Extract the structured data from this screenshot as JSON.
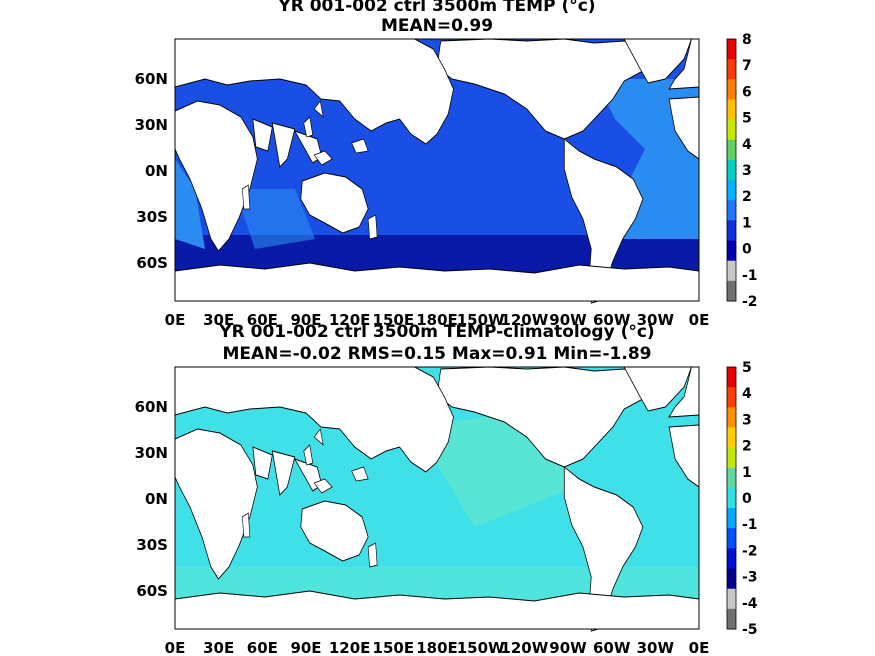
{
  "panels": [
    {
      "title_line1": "YR 001-002 ctrl 3500m TEMP (°c)",
      "title_line2": "MEAN=0.99",
      "colorbar": {
        "ticks": [
          "8",
          "7",
          "6",
          "5",
          "4",
          "3",
          "2",
          "1",
          "0",
          "-1",
          "-2"
        ],
        "colors": [
          "#e60000",
          "#ff3a00",
          "#ff8000",
          "#ffc000",
          "#c8e600",
          "#60d060",
          "#00d0c0",
          "#00b4ff",
          "#1e78ff",
          "#1030e0",
          "#0000b0",
          "#c8c8c8",
          "#707070"
        ]
      },
      "ocean_color": "#1a4fe6",
      "deep_color": "#0a1aa8",
      "atlantic_color": "#2a8cf0"
    },
    {
      "title_line1": "YR 001-002 ctrl 3500m TEMP-climatology (°c)",
      "title_line2": "MEAN=-0.02   RMS=0.15   Max=0.91   Min=-1.89",
      "colorbar": {
        "ticks": [
          "5",
          "4",
          "3",
          "2",
          "1",
          "0",
          "-1",
          "-2",
          "-3",
          "-4",
          "-5"
        ],
        "colors": [
          "#e60000",
          "#ff4000",
          "#ff9000",
          "#ffd000",
          "#c0e800",
          "#60d8a0",
          "#30e0e0",
          "#00a8ff",
          "#0050ff",
          "#0010d0",
          "#000090",
          "#c8c8c8",
          "#707070"
        ]
      },
      "ocean_color": "#40e0e8",
      "deep_color": "#40e0e8",
      "atlantic_color": "#40e0e8"
    }
  ],
  "lat_labels": [
    "60N",
    "30N",
    "0N",
    "30S",
    "60S"
  ],
  "lon_labels": [
    "0E",
    "30E",
    "60E",
    "90E",
    "120E",
    "150E",
    "180E",
    "150W",
    "120W",
    "90W",
    "60W",
    "30W",
    "0E"
  ]
}
